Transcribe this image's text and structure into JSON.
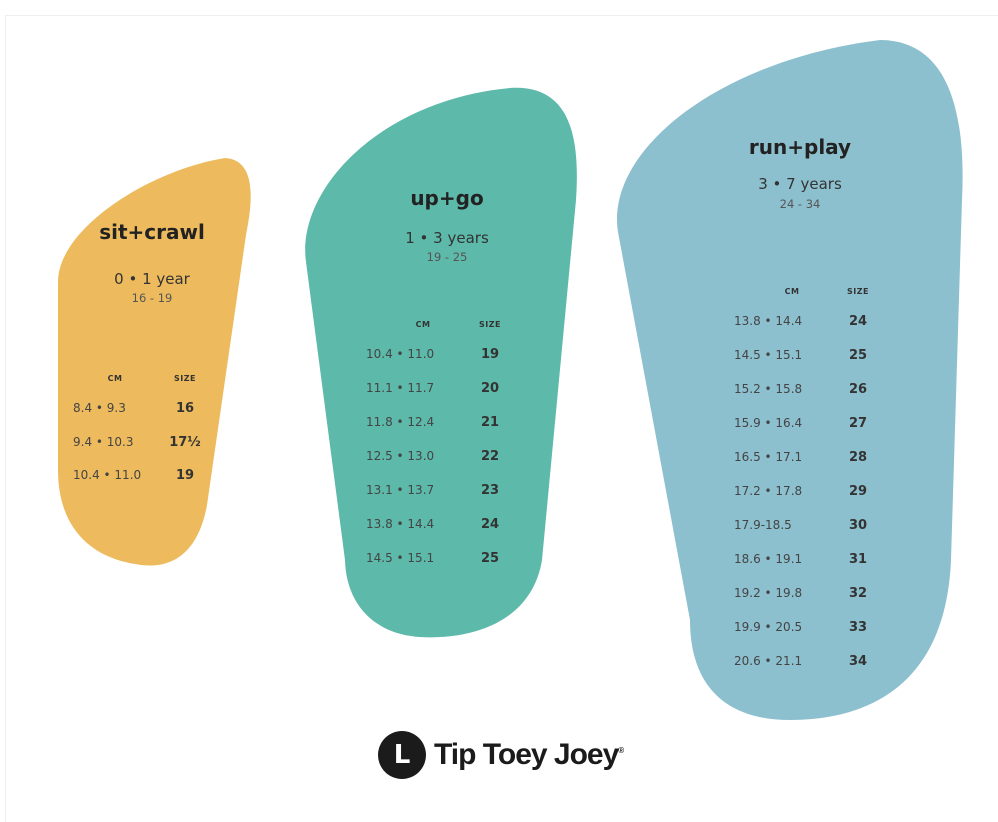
{
  "colors": {
    "sit": "#EDBB5E",
    "up": "#5DB9A9",
    "run": "#8DC0CF"
  },
  "groups": [
    {
      "title": "sit+crawl",
      "age": "0 • 1 year",
      "range": "16 - 19",
      "cm_header": "CM",
      "size_header": "SIZE",
      "rows": [
        [
          "8.4 • 9.3",
          "16"
        ],
        [
          "9.4 • 10.3",
          "17½"
        ],
        [
          "10.4 • 11.0",
          "19"
        ]
      ]
    },
    {
      "title": "up+go",
      "age": "1 • 3 years",
      "range": "19 - 25",
      "cm_header": "CM",
      "size_header": "SIZE",
      "rows": [
        [
          "10.4 • 11.0",
          "19"
        ],
        [
          "11.1 • 11.7",
          "20"
        ],
        [
          "11.8 • 12.4",
          "21"
        ],
        [
          "12.5 • 13.0",
          "22"
        ],
        [
          "13.1 • 13.7",
          "23"
        ],
        [
          "13.8 • 14.4",
          "24"
        ],
        [
          "14.5 • 15.1",
          "25"
        ]
      ]
    },
    {
      "title": "run+play",
      "age": "3 • 7 years",
      "range": "24 - 34",
      "cm_header": "CM",
      "size_header": "SIZE",
      "rows": [
        [
          "13.8 • 14.4",
          "24"
        ],
        [
          "14.5 • 15.1",
          "25"
        ],
        [
          "15.2 • 15.8",
          "26"
        ],
        [
          "15.9 • 16.4",
          "27"
        ],
        [
          "16.5 • 17.1",
          "28"
        ],
        [
          "17.2 • 17.8",
          "29"
        ],
        [
          "17.9-18.5",
          "30"
        ],
        [
          "18.6 • 19.1",
          "31"
        ],
        [
          "19.2 • 19.8",
          "32"
        ],
        [
          "19.9 • 20.5",
          "33"
        ],
        [
          "20.6 • 21.1",
          "34"
        ]
      ]
    }
  ],
  "logo": {
    "name": "Tip Toey Joey",
    "mark": "L",
    "reg": "®"
  }
}
